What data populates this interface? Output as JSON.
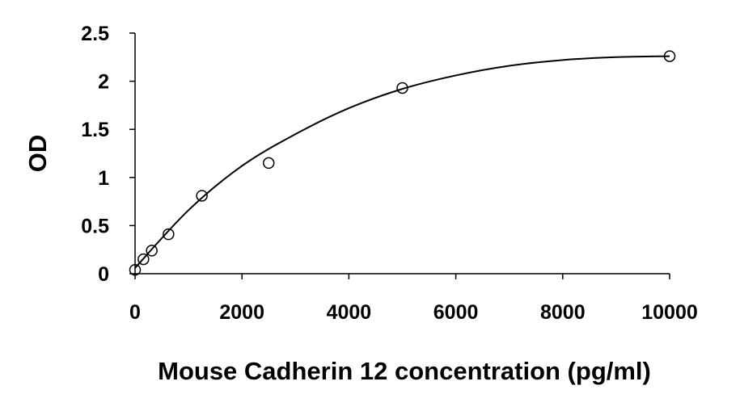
{
  "chart_data": {
    "type": "scatter",
    "xlabel": "Mouse Cadherin 12 concentration (pg/ml)",
    "ylabel": "OD",
    "xlim": [
      0,
      10000
    ],
    "xticks": [
      0,
      2000,
      4000,
      6000,
      8000,
      10000
    ],
    "ylim": [
      0,
      2.5
    ],
    "yticks": [
      0,
      0.5,
      1,
      1.5,
      2,
      2.5
    ],
    "series": [
      {
        "type": "scatter",
        "color": "#000000",
        "x": [
          0,
          156.25,
          312.5,
          625,
          1250,
          2500,
          5000,
          10000
        ],
        "values": [
          0.04,
          0.15,
          0.24,
          0.41,
          0.81,
          1.15,
          1.93,
          2.26
        ]
      },
      {
        "type": "line",
        "color": "#000000",
        "x": [
          0,
          1000,
          2000,
          3000,
          4000,
          5000,
          6000,
          7000,
          8000,
          9000,
          10000
        ],
        "values": [
          0.06,
          0.66,
          1.12,
          1.45,
          1.72,
          1.92,
          2.06,
          2.16,
          2.22,
          2.25,
          2.26
        ]
      }
    ]
  }
}
